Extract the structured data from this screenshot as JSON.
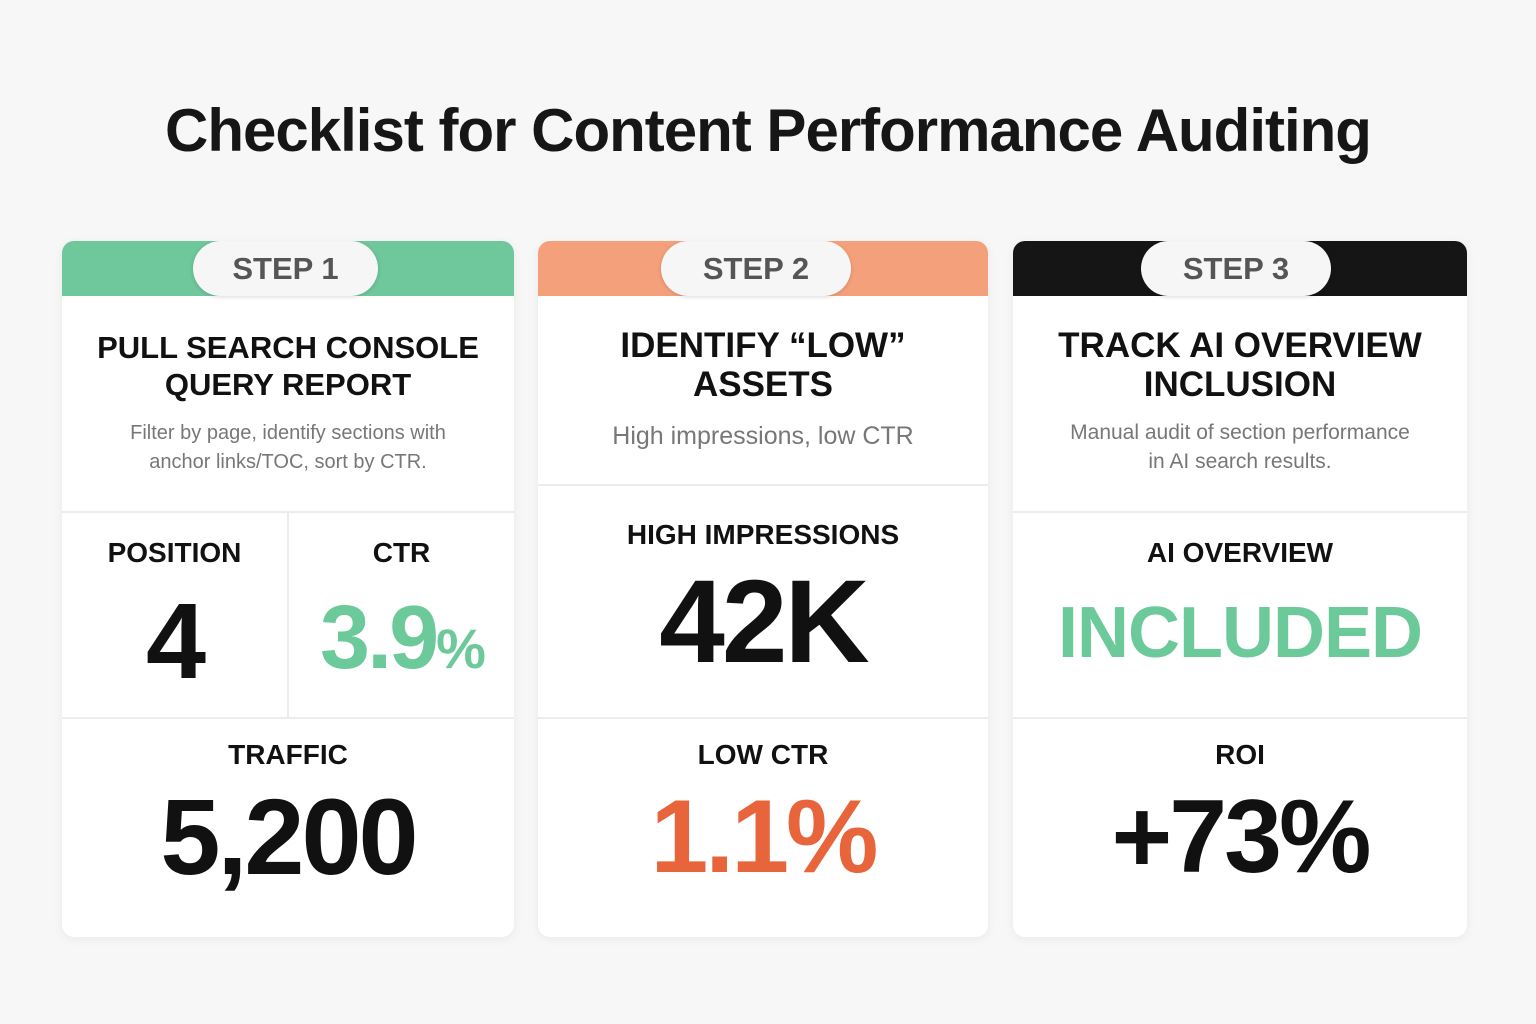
{
  "title": "Checklist for Content Performance Auditing",
  "colors": {
    "step1": "#6fc79c",
    "step2": "#f4a07a",
    "step3": "#151515",
    "green_value": "#6cc99a",
    "orange_value": "#e8643a"
  },
  "steps": [
    {
      "badge": "STEP 1",
      "heading_line1": "PULL SEARCH CONSOLE",
      "heading_line2": "QUERY REPORT",
      "description_line1": "Filter by page, identify sections with",
      "description_line2": "anchor links/TOC, sort by CTR.",
      "metrics": [
        {
          "label": "POSITION",
          "value": "4"
        },
        {
          "label": "CTR",
          "value": "3.9",
          "unit": "%"
        }
      ],
      "bottom": {
        "label": "TRAFFIC",
        "value": "5,200"
      }
    },
    {
      "badge": "STEP 2",
      "heading_line1": "IDENTIFY “LOW”",
      "heading_line2": "ASSETS",
      "description_line1": "High impressions, low CTR",
      "metrics": [
        {
          "label": "HIGH IMPRESSIONS",
          "value": "42K"
        }
      ],
      "bottom": {
        "label": "LOW CTR",
        "value": "1.1%"
      }
    },
    {
      "badge": "STEP 3",
      "heading_line1": "TRACK AI OVERVIEW",
      "heading_line2": "INCLUSION",
      "description_line1": "Manual audit of section performance",
      "description_line2": "in AI search results.",
      "metrics": [
        {
          "label": "AI OVERVIEW",
          "value": "INCLUDED"
        }
      ],
      "bottom": {
        "label": "ROI",
        "value": "+73%"
      }
    }
  ]
}
